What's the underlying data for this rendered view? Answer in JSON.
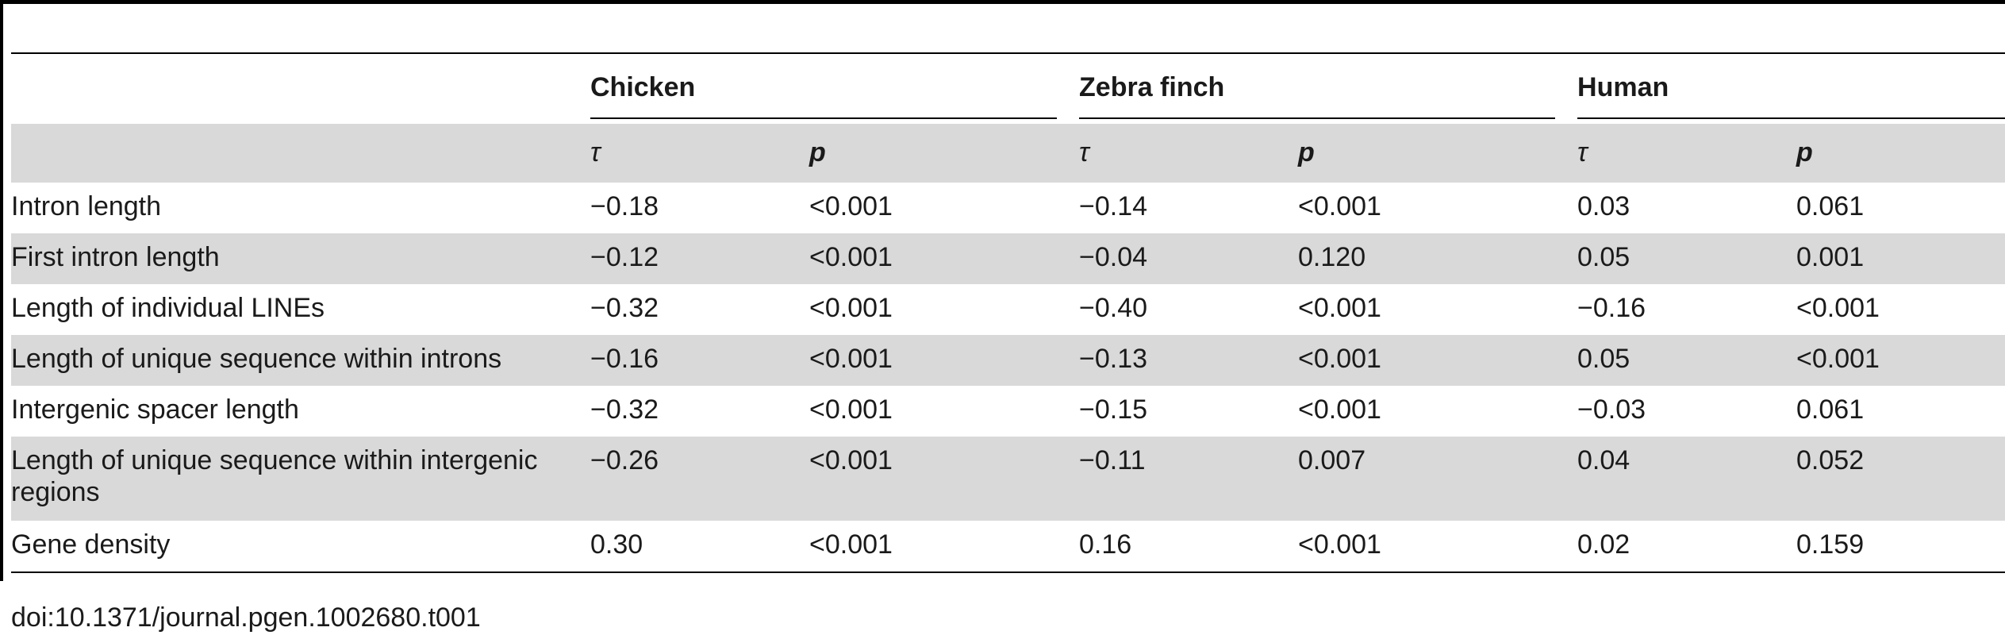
{
  "table": {
    "groups": [
      "Chicken",
      "Zebra finch",
      "Human"
    ],
    "subheaders": [
      "τ",
      "p",
      "τ",
      "p",
      "τ",
      "p"
    ],
    "rows": [
      {
        "label": "Intron length",
        "values": [
          "−0.18",
          "<0.001",
          "−0.14",
          "<0.001",
          "0.03",
          "0.061"
        ]
      },
      {
        "label": "First intron length",
        "values": [
          "−0.12",
          "<0.001",
          "−0.04",
          "0.120",
          "0.05",
          "0.001"
        ]
      },
      {
        "label": "Length of individual LINEs",
        "values": [
          "−0.32",
          "<0.001",
          "−0.40",
          "<0.001",
          "−0.16",
          "<0.001"
        ]
      },
      {
        "label": "Length of unique sequence within introns",
        "values": [
          "−0.16",
          "<0.001",
          "−0.13",
          "<0.001",
          "0.05",
          "<0.001"
        ]
      },
      {
        "label": "Intergenic spacer length",
        "values": [
          "−0.32",
          "<0.001",
          "−0.15",
          "<0.001",
          "−0.03",
          "0.061"
        ]
      },
      {
        "label": "Length of unique sequence within intergenic regions",
        "values": [
          "−0.26",
          "<0.001",
          "−0.11",
          "0.007",
          "0.04",
          "0.052"
        ]
      },
      {
        "label": "Gene density",
        "values": [
          "0.30",
          "<0.001",
          "0.16",
          "<0.001",
          "0.02",
          "0.159"
        ]
      }
    ]
  },
  "doi": "doi:10.1371/journal.pgen.1002680.t001"
}
